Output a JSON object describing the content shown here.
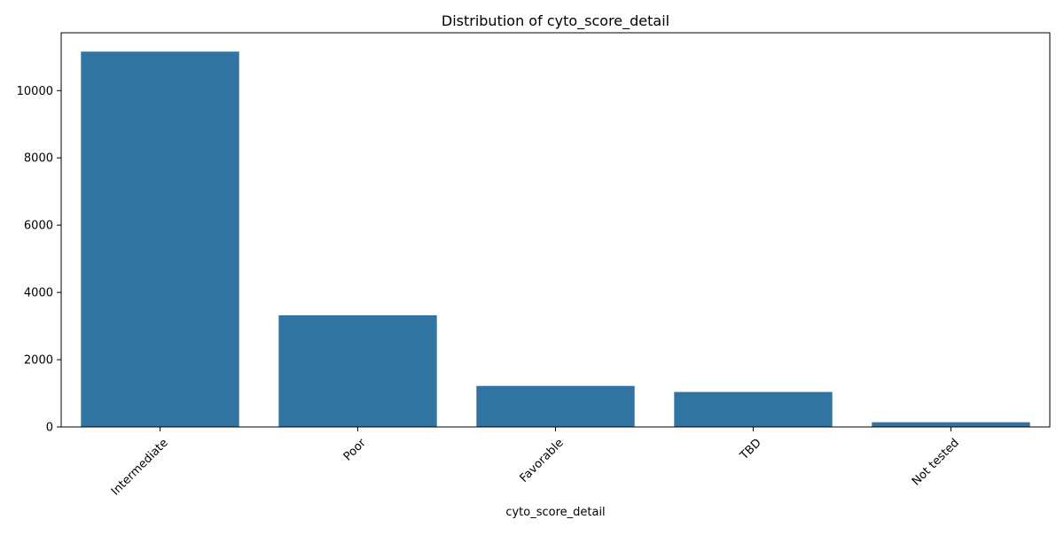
{
  "chart_data": {
    "type": "bar",
    "title": "Distribution of cyto_score_detail",
    "xlabel": "cyto_score_detail",
    "ylabel": "",
    "categories": [
      "Intermediate",
      "Poor",
      "Favorable",
      "TBD",
      "Not tested"
    ],
    "values": [
      11160,
      3320,
      1220,
      1040,
      140
    ],
    "ylim": [
      0,
      11720
    ],
    "yticks": [
      0,
      2000,
      4000,
      6000,
      8000,
      10000
    ],
    "grid": false,
    "legend": "none",
    "bar_color": "#3274a1"
  }
}
